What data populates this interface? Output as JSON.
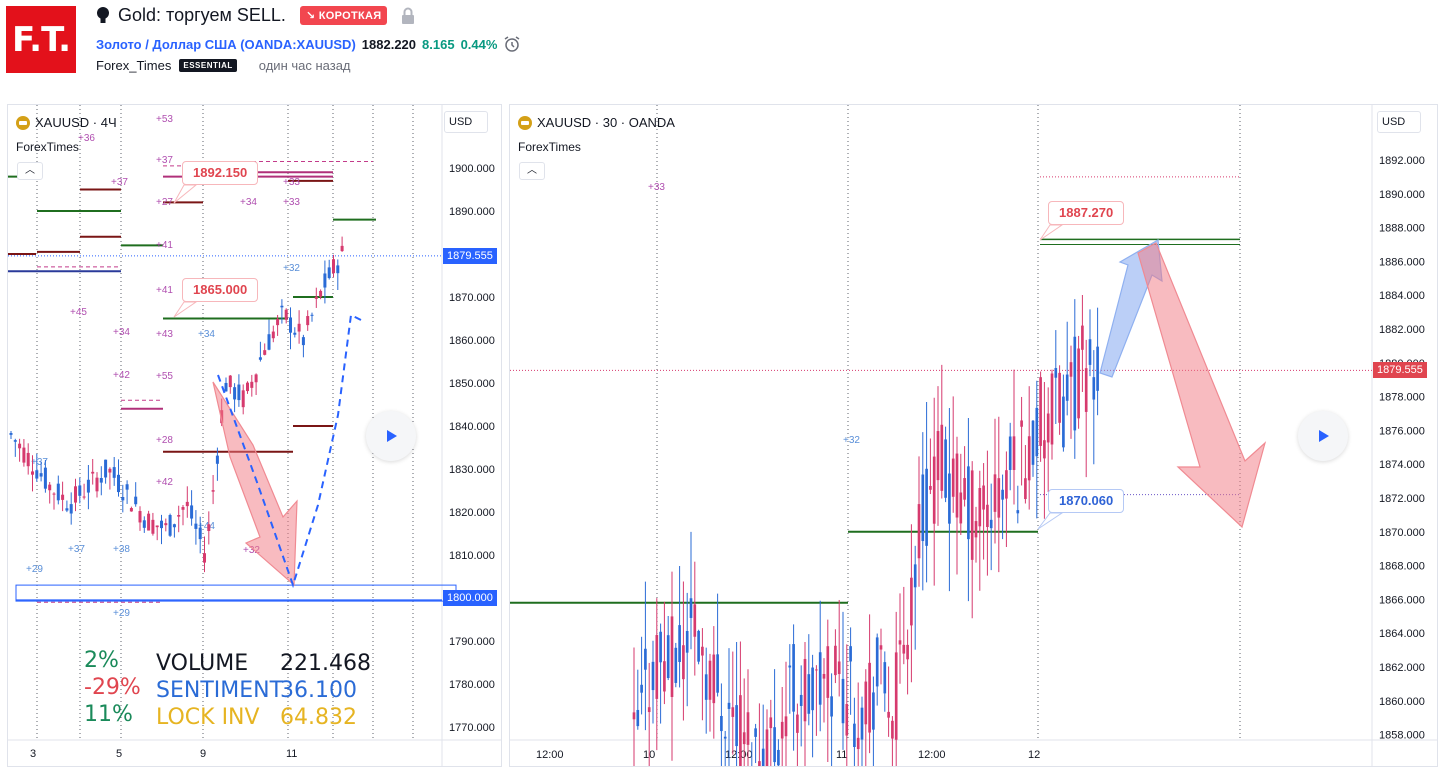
{
  "header": {
    "logo_text": "F.T.",
    "title": "Gold: торгуем SELL.",
    "badge": "↘ КОРОТКАЯ",
    "symbol_link": "Золото / Доллар США (OANDA:XAUUSD)",
    "price": "1882.220",
    "change_abs": "8.165",
    "change_pct": "0.44%",
    "author": "Forex_Times",
    "plan_badge": "ESSENTIAL",
    "time_ago": "один час назад"
  },
  "left_chart": {
    "title": "XAUUSD · 4Ч",
    "author": "ForexTimes",
    "currency": "USD",
    "y_ticks": [
      "1900.000",
      "1890.000",
      "1880.000",
      "1870.000",
      "1860.000",
      "1850.000",
      "1840.000",
      "1830.000",
      "1820.000",
      "1810.000",
      "1800.000",
      "1790.000",
      "1780.000",
      "1770.000"
    ],
    "x_ticks": [
      "3",
      "5",
      "9",
      "11"
    ],
    "current_price_label": "1879.555",
    "target_price_label": "1800.000",
    "callout_high": "1892.150",
    "callout_low": "1865.000",
    "stats": {
      "pct_green_top": "2%",
      "pct_red": "-29%",
      "pct_green_bottom": "11%",
      "volume_label": "VOLUME",
      "volume_value": "221.468",
      "sentiment_label": "SENTIMENT",
      "sentiment_value": "36.100",
      "lockinv_label": "LOCK INV",
      "lockinv_value": "64.832"
    },
    "level_labels": [
      "+36",
      "+37",
      "+27",
      "+41",
      "+45",
      "+34",
      "+42",
      "+28",
      "+42",
      "+53",
      "+37",
      "+41",
      "+43",
      "+32",
      "+55",
      "+34",
      "+44",
      "+34",
      "+33",
      "+33",
      "+32",
      "+37",
      "+29",
      "+37",
      "+38",
      "+29",
      "+28"
    ]
  },
  "right_chart": {
    "title": "XAUUSD · 30 · OANDA",
    "author": "ForexTimes",
    "currency": "USD",
    "y_ticks": [
      "1892.000",
      "1890.000",
      "1888.000",
      "1886.000",
      "1884.000",
      "1882.000",
      "1880.000",
      "1878.000",
      "1876.000",
      "1874.000",
      "1872.000",
      "1870.000",
      "1868.000",
      "1866.000",
      "1864.000",
      "1862.000",
      "1860.000",
      "1858.000"
    ],
    "x_ticks": [
      "12:00",
      "10",
      "12:00",
      "11",
      "12:00",
      "12"
    ],
    "current_price_label": "1879.555",
    "callout_high": "1887.270",
    "callout_low": "1870.060",
    "level_labels": [
      "+33",
      "+32"
    ]
  },
  "colors": {
    "up": "#2a6bd6",
    "down": "#d63a6e",
    "short_badge": "#f2464f",
    "accent_blue": "#2962ff",
    "positive": "#089981"
  }
}
